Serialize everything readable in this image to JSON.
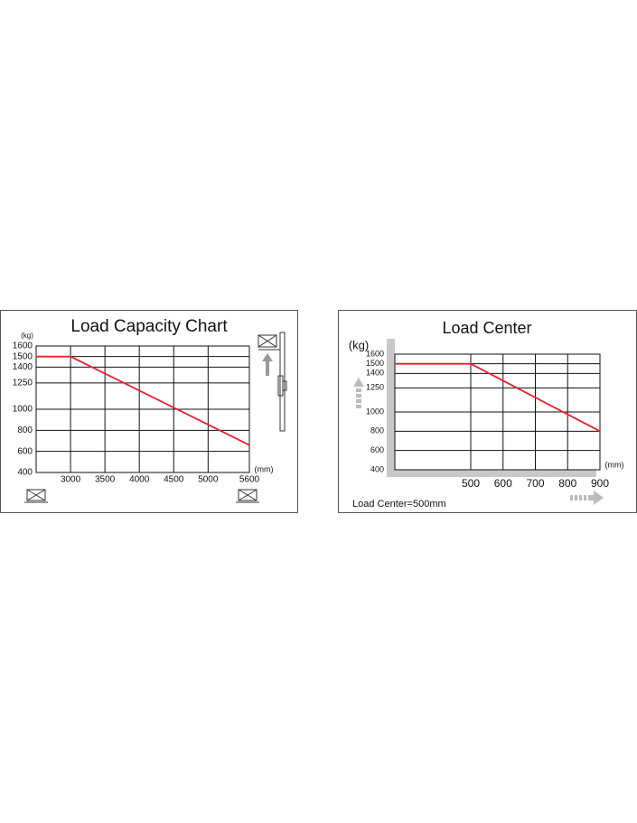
{
  "chart_data": [
    {
      "type": "line",
      "title": "Load Capacity Chart",
      "y_label": "(kg)",
      "x_label": "(mm)",
      "x": [
        2500,
        3000,
        5600
      ],
      "values": [
        1500,
        1500,
        660
      ],
      "color": "#e8202a",
      "xlim": [
        2500,
        5600
      ],
      "xticks": [
        3000,
        3500,
        4000,
        4500,
        5000,
        5600
      ],
      "ylim": [
        400,
        1600
      ],
      "yticks": [
        400,
        600,
        800,
        1000,
        1250,
        1400,
        1500,
        1600
      ],
      "grid": true
    },
    {
      "type": "line",
      "title": "Load Center",
      "y_label": "(kg)",
      "x_label": "(mm)",
      "x": [
        265,
        500,
        900
      ],
      "values": [
        1500,
        1500,
        800
      ],
      "color": "#e8202a",
      "xlim": [
        265,
        900
      ],
      "xticks": [
        500,
        600,
        700,
        800,
        900
      ],
      "ylim": [
        400,
        1600
      ],
      "yticks": [
        400,
        600,
        800,
        1000,
        1250,
        1400,
        1500,
        1600
      ],
      "grid": true,
      "annotation": "Load Center=500mm"
    }
  ]
}
